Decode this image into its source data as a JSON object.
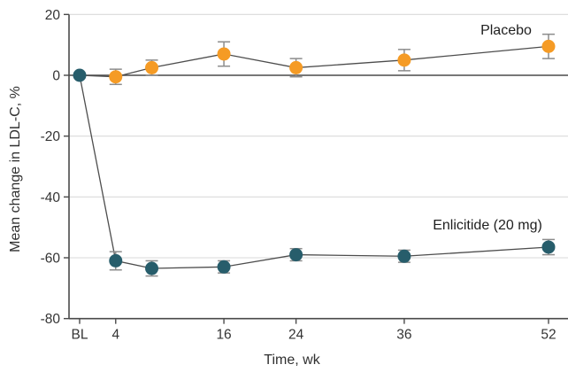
{
  "chart_data": {
    "type": "line",
    "title": "",
    "xlabel": "Time, wk",
    "ylabel": "Mean change in LDL-C, %",
    "x": [
      0,
      4,
      8,
      16,
      24,
      36,
      52
    ],
    "x_tick_labels": [
      "BL",
      "4",
      "16",
      "24",
      "36",
      "52"
    ],
    "x_tick_values": [
      0,
      4,
      16,
      24,
      36,
      52
    ],
    "ylim": [
      -80,
      20
    ],
    "y_ticks": [
      20,
      0,
      -20,
      -40,
      -60,
      -80
    ],
    "gridlines_at": [
      20,
      -20,
      -40,
      -60
    ],
    "zero_line_at": 0,
    "legend_position": "inline-labels",
    "series": [
      {
        "name": "Placebo",
        "color": "#F59B25",
        "marker": "circle",
        "values": [
          0,
          -0.5,
          2.5,
          7,
          2.5,
          5,
          9.5
        ],
        "errors": [
          0,
          2.5,
          2.5,
          4,
          3,
          3.5,
          4
        ],
        "skip_first_marker": true
      },
      {
        "name": "Enlicitide (20 mg)",
        "color": "#275D6B",
        "marker": "circle",
        "values": [
          0,
          -61,
          -63.5,
          -63,
          -59,
          -59.5,
          -56.5
        ],
        "errors": [
          0,
          3,
          2.5,
          2,
          2,
          2,
          2.5
        ],
        "skip_first_marker": false
      }
    ],
    "style": {
      "connector_line_color": "#4d4d4d",
      "error_bar_color": "#8c8c8c",
      "grid_color": "#dadada",
      "axis_color": "#4a4a4a",
      "tick_label_color": "#333333",
      "background": "#ffffff"
    }
  }
}
